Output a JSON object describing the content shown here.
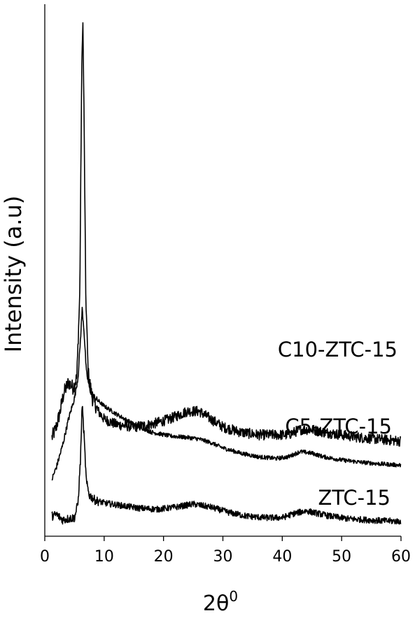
{
  "chart_data": {
    "type": "line",
    "title": "",
    "xlabel_base": "2θ",
    "xlabel_sup": "0",
    "ylabel": "Intensity (a.u)",
    "xlim": [
      0,
      60
    ],
    "xticks": [
      0,
      10,
      20,
      30,
      40,
      50,
      60
    ],
    "y_ticks_shown": false,
    "grid": false,
    "legend": "none",
    "color": "#000000",
    "series": [
      {
        "name": "C10-ZTC-15",
        "baseline": 0.16,
        "noise": 0.01,
        "points": [
          [
            1.2,
            0.175
          ],
          [
            1.8,
            0.19
          ],
          [
            2.5,
            0.22
          ],
          [
            3.2,
            0.26
          ],
          [
            4.0,
            0.28
          ],
          [
            4.8,
            0.27
          ],
          [
            5.4,
            0.29
          ],
          [
            5.9,
            0.45
          ],
          [
            6.2,
            0.85
          ],
          [
            6.4,
            0.98
          ],
          [
            6.6,
            0.8
          ],
          [
            6.9,
            0.45
          ],
          [
            7.3,
            0.3
          ],
          [
            8.0,
            0.25
          ],
          [
            9.0,
            0.225
          ],
          [
            10,
            0.21
          ],
          [
            12,
            0.2
          ],
          [
            15,
            0.195
          ],
          [
            18,
            0.2
          ],
          [
            21,
            0.21
          ],
          [
            24,
            0.225
          ],
          [
            26,
            0.225
          ],
          [
            28,
            0.21
          ],
          [
            30,
            0.195
          ],
          [
            33,
            0.185
          ],
          [
            36,
            0.18
          ],
          [
            39,
            0.18
          ],
          [
            41,
            0.18
          ],
          [
            43,
            0.19
          ],
          [
            45,
            0.19
          ],
          [
            47,
            0.185
          ],
          [
            50,
            0.18
          ],
          [
            53,
            0.175
          ],
          [
            56,
            0.172
          ],
          [
            60,
            0.168
          ]
        ]
      },
      {
        "name": "C5-ZTC-15",
        "baseline": 0.08,
        "noise": 0.004,
        "points": [
          [
            1.2,
            0.095
          ],
          [
            2.0,
            0.12
          ],
          [
            3.0,
            0.16
          ],
          [
            4.0,
            0.21
          ],
          [
            5.0,
            0.25
          ],
          [
            5.6,
            0.29
          ],
          [
            6.0,
            0.36
          ],
          [
            6.3,
            0.42
          ],
          [
            6.6,
            0.38
          ],
          [
            7.0,
            0.3
          ],
          [
            7.6,
            0.265
          ],
          [
            8.5,
            0.25
          ],
          [
            10,
            0.235
          ],
          [
            12,
            0.22
          ],
          [
            15,
            0.2
          ],
          [
            18,
            0.185
          ],
          [
            21,
            0.178
          ],
          [
            24,
            0.175
          ],
          [
            26,
            0.172
          ],
          [
            28,
            0.165
          ],
          [
            30,
            0.155
          ],
          [
            33,
            0.145
          ],
          [
            36,
            0.138
          ],
          [
            39,
            0.135
          ],
          [
            41,
            0.138
          ],
          [
            43,
            0.148
          ],
          [
            45,
            0.145
          ],
          [
            47,
            0.138
          ],
          [
            50,
            0.132
          ],
          [
            53,
            0.128
          ],
          [
            56,
            0.125
          ],
          [
            60,
            0.122
          ]
        ]
      },
      {
        "name": "ZTC-15",
        "baseline": 0.0,
        "noise": 0.006,
        "points": [
          [
            1.2,
            0.025
          ],
          [
            2.0,
            0.028
          ],
          [
            3.0,
            0.018
          ],
          [
            4.0,
            0.02
          ],
          [
            5.0,
            0.022
          ],
          [
            5.6,
            0.05
          ],
          [
            6.0,
            0.13
          ],
          [
            6.3,
            0.24
          ],
          [
            6.6,
            0.18
          ],
          [
            7.0,
            0.09
          ],
          [
            7.5,
            0.065
          ],
          [
            8.5,
            0.055
          ],
          [
            10,
            0.05
          ],
          [
            13,
            0.045
          ],
          [
            16,
            0.04
          ],
          [
            19,
            0.038
          ],
          [
            22,
            0.042
          ],
          [
            25,
            0.048
          ],
          [
            28,
            0.042
          ],
          [
            31,
            0.032
          ],
          [
            34,
            0.025
          ],
          [
            37,
            0.022
          ],
          [
            40,
            0.022
          ],
          [
            42,
            0.03
          ],
          [
            44,
            0.035
          ],
          [
            46,
            0.03
          ],
          [
            48,
            0.025
          ],
          [
            51,
            0.02
          ],
          [
            54,
            0.018
          ],
          [
            57,
            0.016
          ],
          [
            60,
            0.015
          ]
        ]
      }
    ]
  }
}
